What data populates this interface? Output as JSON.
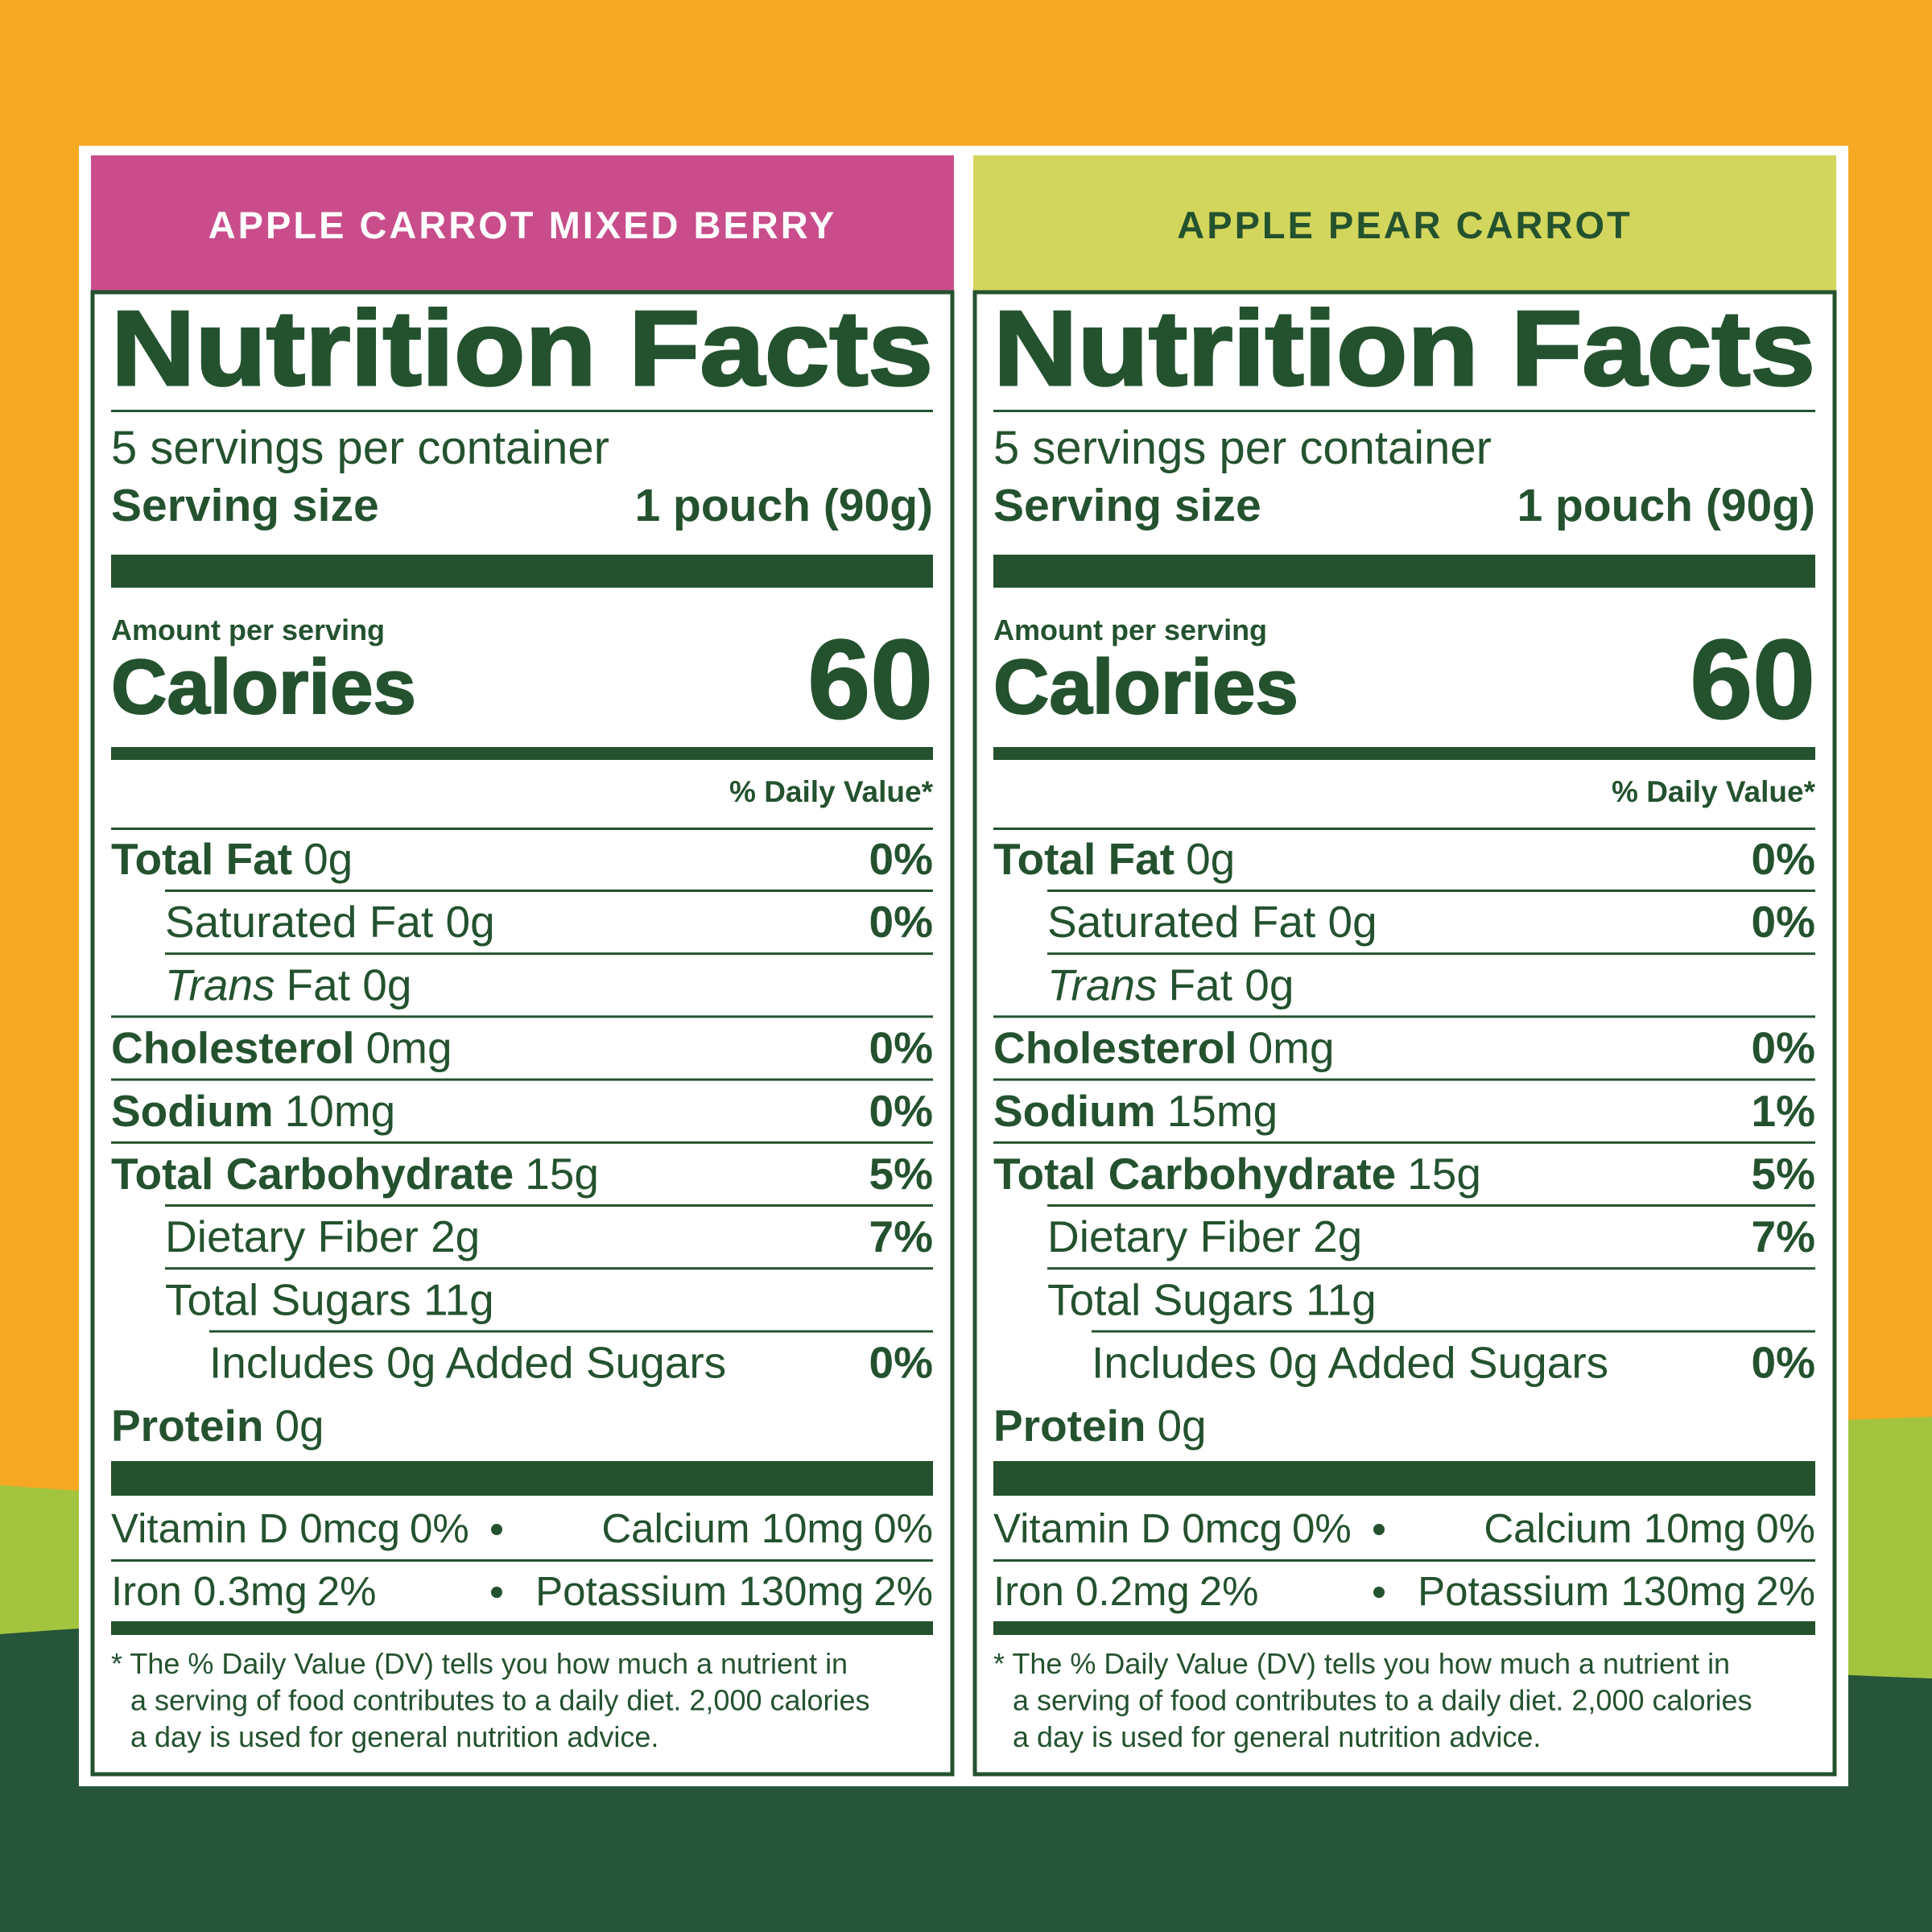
{
  "panels": [
    {
      "header": "APPLE CARROT MIXED BERRY",
      "title": "Nutrition Facts",
      "servings": "5 servings per container",
      "serving_size_label": "Serving size",
      "serving_size": "1 pouch (90g)",
      "amount_per_serving": "Amount per serving",
      "calories_label": "Calories",
      "calories": "60",
      "daily_value_header": "% Daily Value*",
      "rows": [
        {
          "nutrient": "Total Fat",
          "amount": "0g",
          "dv": "0%"
        },
        {
          "sub": "Saturated Fat 0g",
          "dv": "0%"
        },
        {
          "sub_italic": "Trans",
          "sub": "Fat 0g"
        },
        {
          "nutrient": "Cholesterol",
          "amount": "0mg",
          "dv": "0%"
        },
        {
          "nutrient": "Sodium",
          "amount": "10mg",
          "dv": "0%"
        },
        {
          "nutrient": "Total Carbohydrate",
          "amount": "15g",
          "dv": "5%"
        },
        {
          "sub": "Dietary Fiber 2g",
          "dv": "7%"
        },
        {
          "sub": "Total Sugars 11g"
        },
        {
          "subsub": "Includes 0g Added Sugars",
          "dv": "0%"
        },
        {
          "nutrient": "Protein",
          "amount": "0g"
        }
      ],
      "vitamins": [
        [
          "Vitamin D 0mcg",
          "0%"
        ],
        [
          "Calcium 10mg",
          "0%"
        ],
        [
          "Iron 0.3mg",
          "2%"
        ],
        [
          "Potassium 130mg",
          "2%"
        ]
      ],
      "footnote": [
        "* The % Daily Value (DV) tells you how much a nutrient in",
        "a serving of food contributes to a daily diet. 2,000 calories",
        "a day is used for general nutrition advice."
      ]
    },
    {
      "header": "APPLE PEAR CARROT",
      "title": "Nutrition Facts",
      "servings": "5 servings per container",
      "serving_size_label": "Serving size",
      "serving_size": "1 pouch (90g)",
      "amount_per_serving": "Amount per serving",
      "calories_label": "Calories",
      "calories": "60",
      "daily_value_header": "% Daily Value*",
      "rows": [
        {
          "nutrient": "Total Fat",
          "amount": "0g",
          "dv": "0%"
        },
        {
          "sub": "Saturated Fat 0g",
          "dv": "0%"
        },
        {
          "sub_italic": "Trans",
          "sub": "Fat 0g"
        },
        {
          "nutrient": "Cholesterol",
          "amount": "0mg",
          "dv": "0%"
        },
        {
          "nutrient": "Sodium",
          "amount": "15mg",
          "dv": "1%"
        },
        {
          "nutrient": "Total Carbohydrate",
          "amount": "15g",
          "dv": "5%"
        },
        {
          "sub": "Dietary Fiber 2g",
          "dv": "7%"
        },
        {
          "sub": "Total Sugars 11g"
        },
        {
          "subsub": "Includes 0g Added Sugars",
          "dv": "0%"
        },
        {
          "nutrient": "Protein",
          "amount": "0g"
        }
      ],
      "vitamins": [
        [
          "Vitamin D 0mcg",
          "0%"
        ],
        [
          "Calcium 10mg",
          "0%"
        ],
        [
          "Iron 0.2mg",
          "2%"
        ],
        [
          "Potassium 130mg",
          "2%"
        ]
      ],
      "footnote": [
        "* The % Daily Value (DV) tells you how much a nutrient in",
        "a serving of food contributes to a daily diet. 2,000 calories",
        "a day is used for general nutrition advice."
      ]
    }
  ]
}
